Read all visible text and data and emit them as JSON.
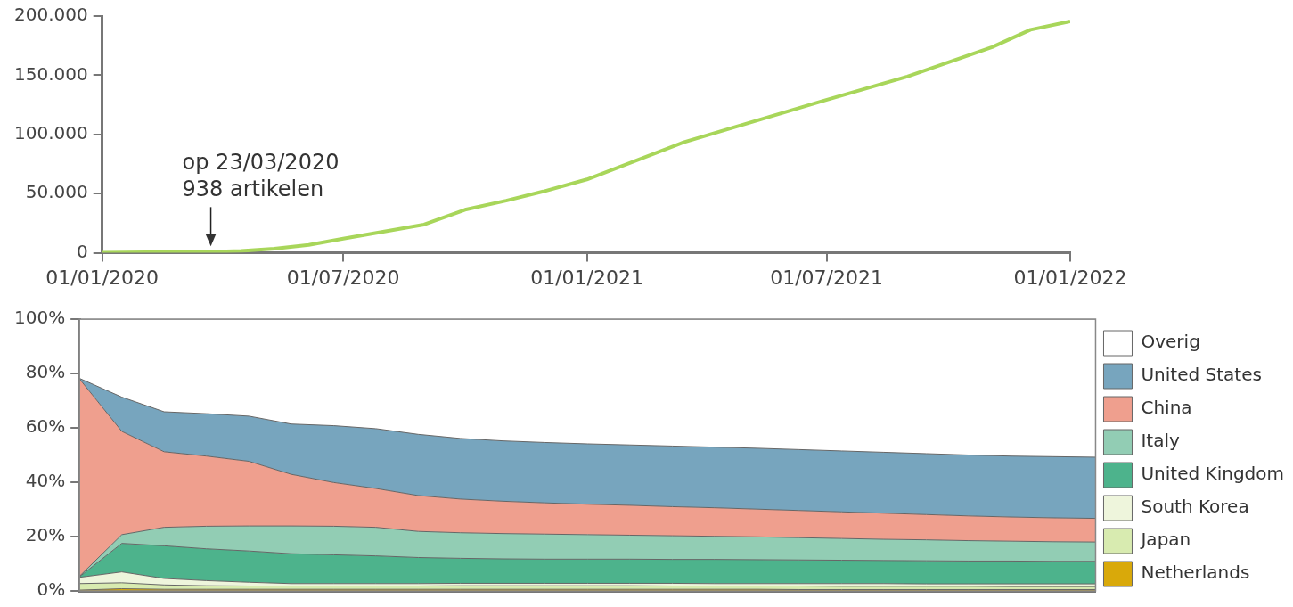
{
  "chart_data": [
    {
      "type": "line",
      "x": [
        "2020-01-01",
        "2020-03-23",
        "2020-04-15",
        "2020-05-10",
        "2020-06-05",
        "2020-07-01",
        "2020-08-01",
        "2020-08-31",
        "2020-10-01",
        "2020-11-01",
        "2020-11-29",
        "2021-01-01",
        "2021-03-15",
        "2021-06-29",
        "2021-08-31",
        "2021-11-03",
        "2021-12-02",
        "2022-01-01"
      ],
      "series": [
        {
          "color": "#a8d65a",
          "values": [
            0,
            938,
            1500,
            3500,
            6600,
            12000,
            18000,
            23800,
            36400,
            44000,
            51800,
            62000,
            93300,
            128500,
            148900,
            173700,
            188400,
            195500
          ]
        }
      ],
      "xlim": [
        "2020-01-01",
        "2022-01-01"
      ],
      "xticks": [
        {
          "value": "2020-01-01",
          "label": "01/01/2020"
        },
        {
          "value": "2020-07-01",
          "label": "01/07/2020"
        },
        {
          "value": "2021-01-01",
          "label": "01/01/2021"
        },
        {
          "value": "2021-07-01",
          "label": "01/07/2021"
        },
        {
          "value": "2022-01-01",
          "label": "01/01/2022"
        }
      ],
      "ylim": [
        0,
        200000
      ],
      "yticks": [
        0,
        {
          "value": 50000,
          "label": "50.000"
        },
        {
          "value": 100000,
          "label": "100.000"
        },
        {
          "value": 150000,
          "label": "150.000"
        },
        {
          "value": 200000,
          "label": "200.000"
        }
      ],
      "marker": "none",
      "annotations": [
        {
          "text": "op 23/03/2020\n938 artikelen",
          "x": "2020-03-23",
          "y": 938
        }
      ]
    },
    {
      "type": "area",
      "stacked": true,
      "legend": "right",
      "tick_labels": "y",
      "categories": [
        null,
        null,
        null,
        null,
        null,
        null,
        null,
        null,
        null,
        null,
        null,
        null,
        null,
        null,
        null,
        null,
        null,
        null,
        null,
        null,
        null,
        null,
        null,
        null,
        null
      ],
      "series": [
        {
          "name": "Netherlands",
          "color": "#d9a90a",
          "values": [
            0.3,
            0.8,
            0.6,
            0.6,
            0.6,
            0.6,
            0.6,
            0.6,
            0.6,
            0.6,
            0.6,
            0.6,
            0.6,
            0.6,
            0.6,
            0.6,
            0.6,
            0.5,
            0.5,
            0.5,
            0.5,
            0.5,
            0.5,
            0.5,
            0.5
          ]
        },
        {
          "name": "Japan",
          "color": "#d8ebb0",
          "values": [
            2.4,
            2.2,
            1.6,
            1.3,
            1.2,
            1.2,
            1.2,
            1.2,
            1.2,
            1.3,
            1.3,
            1.3,
            1.3,
            1.3,
            1.2,
            1.2,
            1.2,
            1.3,
            1.2,
            1.2,
            1.2,
            1.2,
            1.1,
            1.1,
            1.1
          ]
        },
        {
          "name": "South Korea",
          "color": "#eef5dc",
          "values": [
            2.3,
            4.0,
            2.4,
            1.9,
            1.4,
            0.9,
            0.9,
            0.9,
            0.9,
            0.9,
            0.9,
            0.9,
            0.9,
            0.9,
            1.0,
            0.9,
            0.9,
            0.9,
            1.0,
            1.0,
            0.9,
            0.9,
            1.0,
            1.0,
            1.0
          ]
        },
        {
          "name": "United Kingdom",
          "color": "#4db38c",
          "values": [
            0.2,
            10.5,
            12.0,
            11.7,
            11.5,
            11.0,
            10.6,
            10.2,
            9.6,
            9.2,
            9.0,
            8.9,
            8.9,
            8.9,
            8.8,
            8.9,
            8.8,
            8.7,
            8.6,
            8.5,
            8.5,
            8.4,
            8.4,
            8.3,
            8.3
          ]
        },
        {
          "name": "Italy",
          "color": "#92cdb4",
          "values": [
            0.2,
            3.2,
            6.8,
            8.3,
            9.2,
            10.2,
            10.5,
            10.5,
            9.6,
            9.4,
            9.3,
            9.2,
            9.0,
            8.8,
            8.7,
            8.5,
            8.4,
            8.2,
            8.0,
            7.8,
            7.7,
            7.5,
            7.3,
            7.2,
            7.1
          ]
        },
        {
          "name": "China",
          "color": "#ef9f8e",
          "values": [
            72.6,
            38.0,
            27.8,
            25.8,
            23.8,
            19.0,
            16.1,
            14.3,
            13.2,
            12.4,
            11.9,
            11.5,
            11.2,
            11.0,
            10.7,
            10.5,
            10.2,
            10.0,
            9.8,
            9.6,
            9.3,
            9.1,
            8.9,
            8.8,
            8.7
          ]
        },
        {
          "name": "United States",
          "color": "#77a5be",
          "values": [
            0.2,
            12.6,
            14.7,
            15.6,
            16.6,
            18.5,
            20.9,
            22.0,
            22.5,
            22.3,
            22.2,
            22.2,
            22.2,
            22.2,
            22.3,
            22.3,
            22.4,
            22.4,
            22.4,
            22.4,
            22.4,
            22.4,
            22.4,
            22.5,
            22.5
          ]
        },
        {
          "name": "Overig",
          "color": "#ffffff",
          "values": [
            21.8,
            28.7,
            34.1,
            34.8,
            35.7,
            38.6,
            39.2,
            40.3,
            42.4,
            43.9,
            44.8,
            45.4,
            45.9,
            46.3,
            46.7,
            47.1,
            47.5,
            48.0,
            48.5,
            49.0,
            49.5,
            50.0,
            50.4,
            50.6,
            50.8
          ]
        }
      ],
      "ylim": [
        0,
        100
      ],
      "yticks": [
        {
          "value": 0,
          "label": "0%"
        },
        {
          "value": 20,
          "label": "20%"
        },
        {
          "value": 40,
          "label": "40%"
        },
        {
          "value": 60,
          "label": "60%"
        },
        {
          "value": 80,
          "label": "80%"
        },
        {
          "value": 100,
          "label": "100%"
        }
      ]
    }
  ]
}
